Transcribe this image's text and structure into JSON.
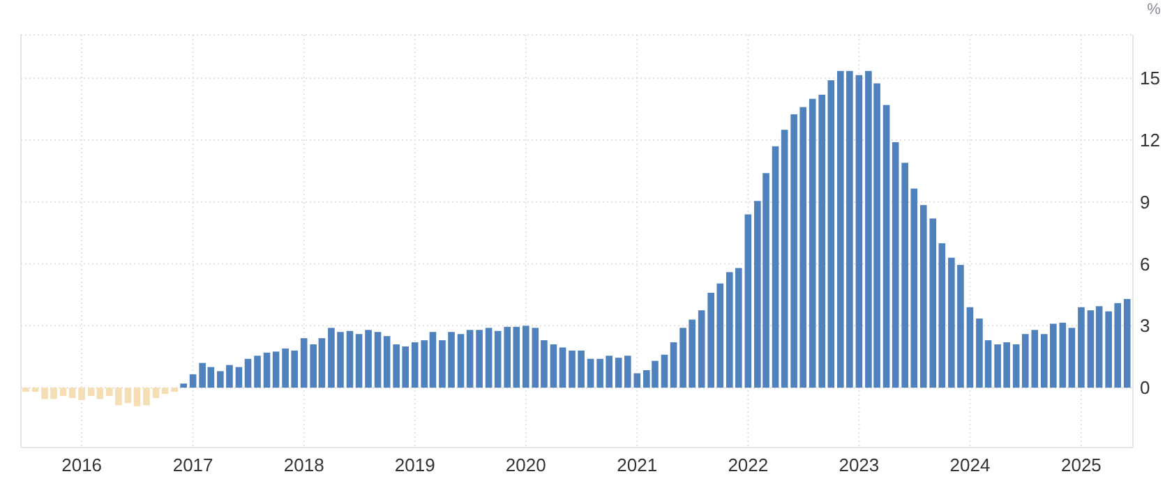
{
  "chart_data": {
    "type": "bar",
    "ylabel": "%",
    "x": [
      "2015-07",
      "2015-08",
      "2015-09",
      "2015-10",
      "2015-11",
      "2015-12",
      "2016-01",
      "2016-02",
      "2016-03",
      "2016-04",
      "2016-05",
      "2016-06",
      "2016-07",
      "2016-08",
      "2016-09",
      "2016-10",
      "2016-11",
      "2016-12",
      "2017-01",
      "2017-02",
      "2017-03",
      "2017-04",
      "2017-05",
      "2017-06",
      "2017-07",
      "2017-08",
      "2017-09",
      "2017-10",
      "2017-11",
      "2017-12",
      "2018-01",
      "2018-02",
      "2018-03",
      "2018-04",
      "2018-05",
      "2018-06",
      "2018-07",
      "2018-08",
      "2018-09",
      "2018-10",
      "2018-11",
      "2018-12",
      "2019-01",
      "2019-02",
      "2019-03",
      "2019-04",
      "2019-05",
      "2019-06",
      "2019-07",
      "2019-08",
      "2019-09",
      "2019-10",
      "2019-11",
      "2019-12",
      "2020-01",
      "2020-02",
      "2020-03",
      "2020-04",
      "2020-05",
      "2020-06",
      "2020-07",
      "2020-08",
      "2020-09",
      "2020-10",
      "2020-11",
      "2020-12",
      "2021-01",
      "2021-02",
      "2021-03",
      "2021-04",
      "2021-05",
      "2021-06",
      "2021-07",
      "2021-08",
      "2021-09",
      "2021-10",
      "2021-11",
      "2021-12",
      "2022-01",
      "2022-02",
      "2022-03",
      "2022-04",
      "2022-05",
      "2022-06",
      "2022-07",
      "2022-08",
      "2022-09",
      "2022-10",
      "2022-11",
      "2022-12",
      "2023-01",
      "2023-02",
      "2023-03",
      "2023-04",
      "2023-05",
      "2023-06",
      "2023-07",
      "2023-08",
      "2023-09",
      "2023-10",
      "2023-11",
      "2023-12",
      "2024-01",
      "2024-02",
      "2024-03",
      "2024-04",
      "2024-05",
      "2024-06",
      "2024-07",
      "2024-08",
      "2024-09",
      "2024-10",
      "2024-11",
      "2024-12",
      "2025-01",
      "2025-02",
      "2025-03",
      "2025-04",
      "2025-05",
      "2025-06"
    ],
    "values": [
      -0.2,
      -0.2,
      -0.55,
      -0.55,
      -0.4,
      -0.5,
      -0.6,
      -0.4,
      -0.55,
      -0.4,
      -0.85,
      -0.75,
      -0.9,
      -0.85,
      -0.5,
      -0.3,
      -0.2,
      0.2,
      0.65,
      1.2,
      1.0,
      0.8,
      1.1,
      1.0,
      1.4,
      1.55,
      1.7,
      1.75,
      1.9,
      1.8,
      2.4,
      2.1,
      2.4,
      2.9,
      2.7,
      2.75,
      2.6,
      2.8,
      2.7,
      2.5,
      2.1,
      2.0,
      2.2,
      2.3,
      2.7,
      2.3,
      2.7,
      2.6,
      2.8,
      2.8,
      2.9,
      2.75,
      2.95,
      2.95,
      3.0,
      2.9,
      2.3,
      2.1,
      1.95,
      1.8,
      1.8,
      1.4,
      1.4,
      1.55,
      1.45,
      1.55,
      0.7,
      0.85,
      1.3,
      1.6,
      2.2,
      2.9,
      3.3,
      3.75,
      4.6,
      5.05,
      5.6,
      5.8,
      8.4,
      9.05,
      10.4,
      11.7,
      12.5,
      13.25,
      13.6,
      14.0,
      14.2,
      14.9,
      15.35,
      15.35,
      15.15,
      15.35,
      14.75,
      13.7,
      11.9,
      10.9,
      9.65,
      8.85,
      8.2,
      7.0,
      6.3,
      5.95,
      3.9,
      3.35,
      2.3,
      2.1,
      2.2,
      2.1,
      2.6,
      2.8,
      2.6,
      3.1,
      3.15,
      2.9,
      3.9,
      3.75,
      3.95,
      3.7,
      4.1,
      4.3
    ],
    "colors": [
      "#f5deb3",
      "#f5deb3",
      "#f5deb3",
      "#f5deb3",
      "#f5deb3",
      "#f5deb3",
      "#f5deb3",
      "#f5deb3",
      "#f5deb3",
      "#f5deb3",
      "#f5deb3",
      "#f5deb3",
      "#f5deb3",
      "#f5deb3",
      "#f5deb3",
      "#f5deb3",
      "#f5deb3",
      "#4f81bd",
      "#4f81bd",
      "#4f81bd",
      "#4f81bd",
      "#4f81bd",
      "#4f81bd",
      "#4f81bd",
      "#4f81bd",
      "#4f81bd",
      "#4f81bd",
      "#4f81bd",
      "#4f81bd",
      "#4f81bd",
      "#4f81bd",
      "#4f81bd",
      "#4f81bd",
      "#4f81bd",
      "#4f81bd",
      "#4f81bd",
      "#4f81bd",
      "#4f81bd",
      "#4f81bd",
      "#4f81bd",
      "#4f81bd",
      "#4f81bd",
      "#4f81bd",
      "#4f81bd",
      "#4f81bd",
      "#4f81bd",
      "#4f81bd",
      "#4f81bd",
      "#4f81bd",
      "#4f81bd",
      "#4f81bd",
      "#4f81bd",
      "#4f81bd",
      "#4f81bd",
      "#4f81bd",
      "#4f81bd",
      "#4f81bd",
      "#4f81bd",
      "#4f81bd",
      "#4f81bd",
      "#4f81bd",
      "#4f81bd",
      "#4f81bd",
      "#4f81bd",
      "#4f81bd",
      "#4f81bd",
      "#4f81bd",
      "#4f81bd",
      "#4f81bd",
      "#4f81bd",
      "#4f81bd",
      "#4f81bd",
      "#4f81bd",
      "#4f81bd",
      "#4f81bd",
      "#4f81bd",
      "#4f81bd",
      "#4f81bd",
      "#4f81bd",
      "#4f81bd",
      "#4f81bd",
      "#4f81bd",
      "#4f81bd",
      "#4f81bd",
      "#4f81bd",
      "#4f81bd",
      "#4f81bd",
      "#4f81bd",
      "#4f81bd",
      "#4f81bd",
      "#4f81bd",
      "#4f81bd",
      "#4f81bd",
      "#4f81bd",
      "#4f81bd",
      "#4f81bd",
      "#4f81bd",
      "#4f81bd",
      "#4f81bd",
      "#4f81bd",
      "#4f81bd",
      "#4f81bd",
      "#4f81bd",
      "#4f81bd",
      "#4f81bd",
      "#4f81bd",
      "#4f81bd",
      "#4f81bd",
      "#4f81bd",
      "#4f81bd",
      "#4f81bd",
      "#4f81bd",
      "#4f81bd",
      "#4f81bd",
      "#4f81bd",
      "#4f81bd",
      "#4f81bd",
      "#4f81bd",
      "#4f81bd",
      "#4f81bd"
    ],
    "xlim": [
      "2015-06-15",
      "2025-06-20"
    ],
    "ylim": [
      -2.9,
      17.1
    ],
    "xticks": [
      "2016",
      "2017",
      "2018",
      "2019",
      "2020",
      "2021",
      "2022",
      "2023",
      "2024",
      "2025"
    ],
    "yticks": [
      0,
      3,
      6,
      9,
      12,
      15
    ],
    "grid": true
  }
}
